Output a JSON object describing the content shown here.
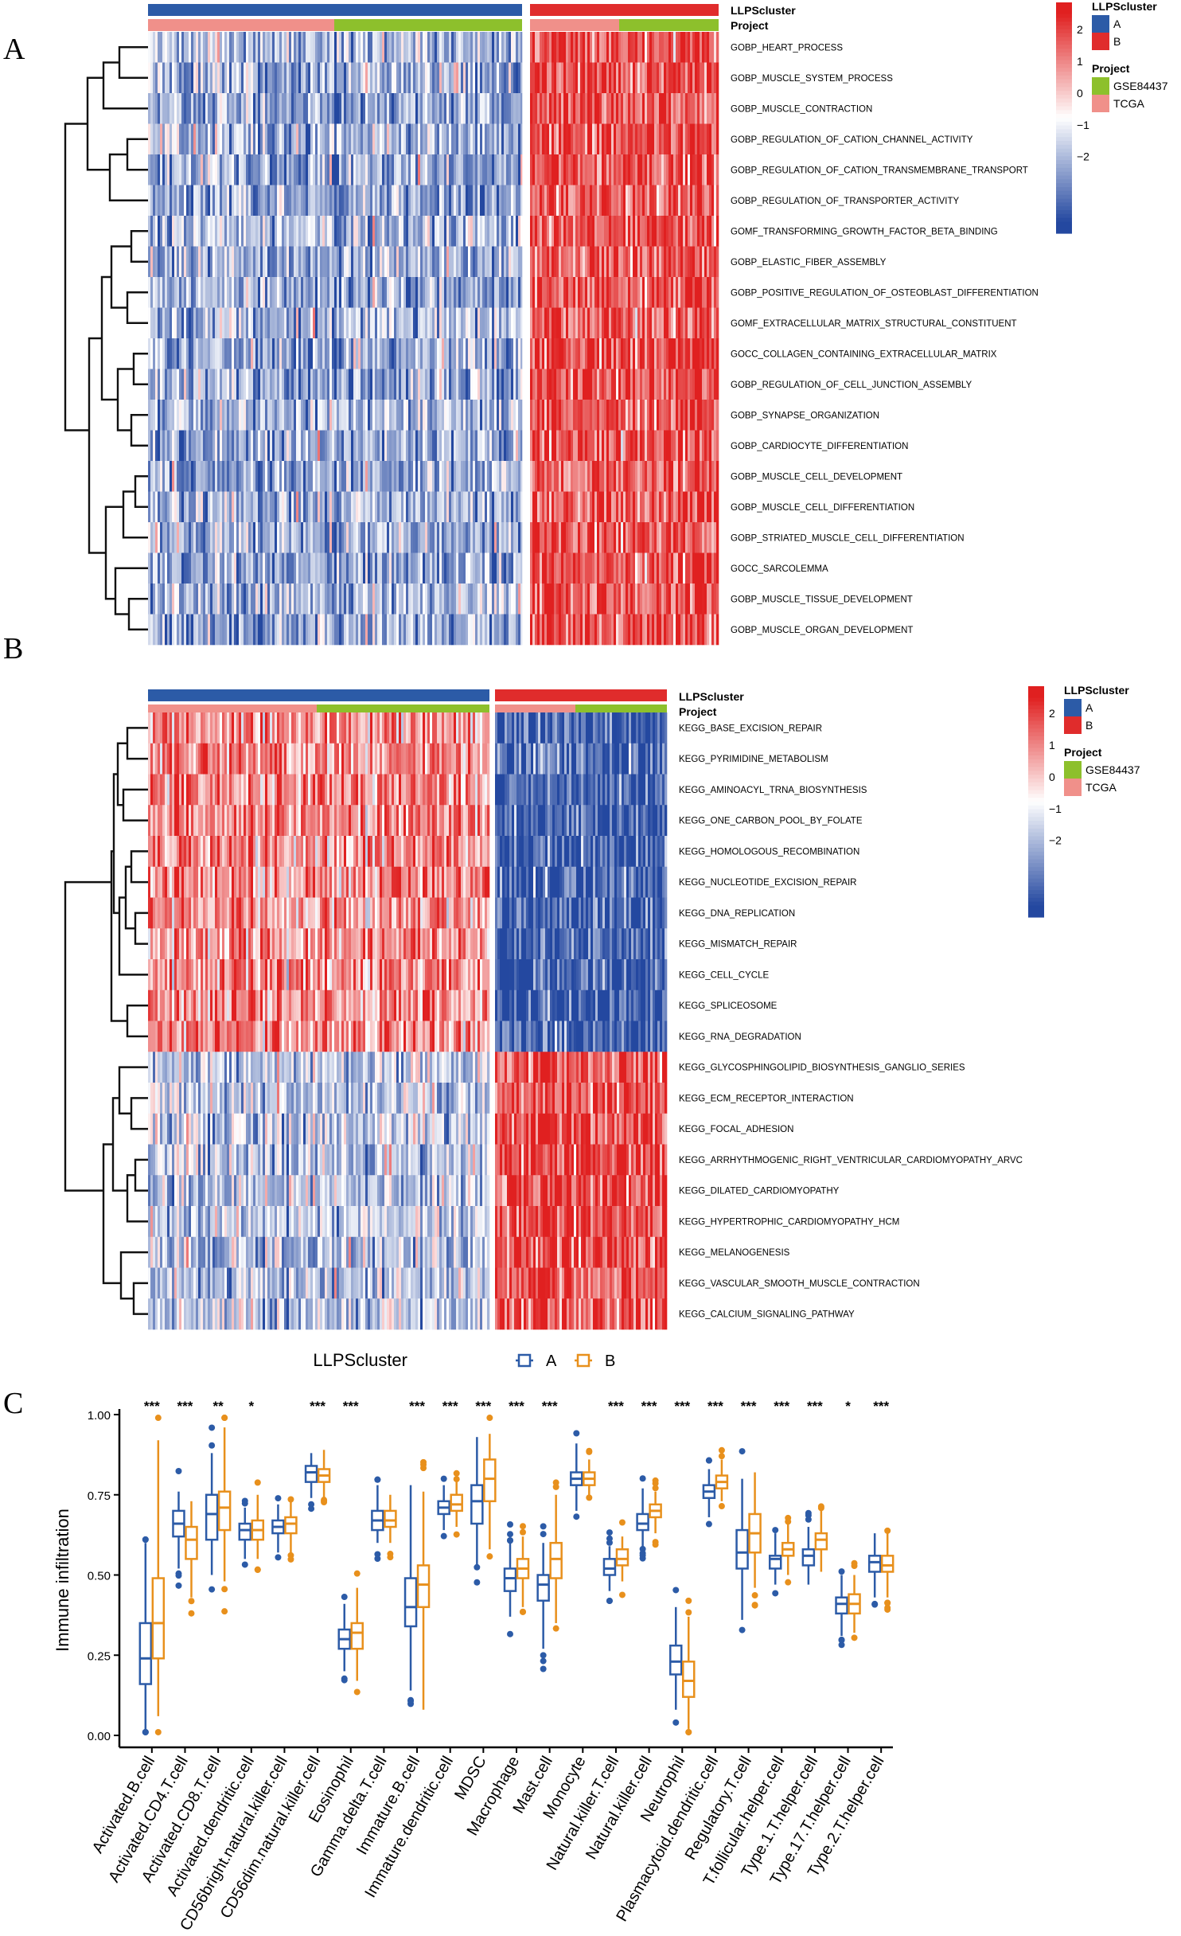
{
  "panels": {
    "a": "A",
    "b": "B",
    "c": "C"
  },
  "colors": {
    "cluster_A": "#2c5ba7",
    "cluster_B": "#e02c2c",
    "GSE84437": "#8dc02c",
    "TCGA": "#f0908a",
    "high": "#e02020",
    "mid": "#ffffff",
    "low": "#2448a0",
    "box_A": "#2c5ba7",
    "box_B": "#e8901c"
  },
  "heatmap_a": {
    "annotation_labels": [
      "LLPScluster",
      "Project"
    ],
    "legend": {
      "scale_ticks": [
        "2",
        "1",
        "0",
        "−1",
        "−2"
      ],
      "cluster_title": "LLPScluster",
      "cluster_items": [
        "A",
        "B"
      ],
      "project_title": "Project",
      "project_items": [
        "GSE84437",
        "TCGA"
      ]
    },
    "rows": [
      "GOBP_HEART_PROCESS",
      "GOBP_MUSCLE_SYSTEM_PROCESS",
      "GOBP_MUSCLE_CONTRACTION",
      "GOBP_REGULATION_OF_CATION_CHANNEL_ACTIVITY",
      "GOBP_REGULATION_OF_CATION_TRANSMEMBRANE_TRANSPORT",
      "GOBP_REGULATION_OF_TRANSPORTER_ACTIVITY",
      "GOMF_TRANSFORMING_GROWTH_FACTOR_BETA_BINDING",
      "GOBP_ELASTIC_FIBER_ASSEMBLY",
      "GOBP_POSITIVE_REGULATION_OF_OSTEOBLAST_DIFFERENTIATION",
      "GOMF_EXTRACELLULAR_MATRIX_STRUCTURAL_CONSTITUENT",
      "GOCC_COLLAGEN_CONTAINING_EXTRACELLULAR_MATRIX",
      "GOBP_REGULATION_OF_CELL_JUNCTION_ASSEMBLY",
      "GOBP_SYNAPSE_ORGANIZATION",
      "GOBP_CARDIOCYTE_DIFFERENTIATION",
      "GOBP_MUSCLE_CELL_DEVELOPMENT",
      "GOBP_MUSCLE_CELL_DIFFERENTIATION",
      "GOBP_STRIATED_MUSCLE_CELL_DIFFERENTIATION",
      "GOCC_SARCOLEMMA",
      "GOBP_MUSCLE_TISSUE_DEVELOPMENT",
      "GOBP_MUSCLE_ORGAN_DEVELOPMENT"
    ],
    "pattern": [
      "A_low",
      "B_high"
    ]
  },
  "heatmap_b": {
    "annotation_labels": [
      "LLPScluster",
      "Project"
    ],
    "legend": {
      "scale_ticks": [
        "2",
        "1",
        "0",
        "−1",
        "−2"
      ],
      "cluster_title": "LLPScluster",
      "cluster_items": [
        "A",
        "B"
      ],
      "project_title": "Project",
      "project_items": [
        "GSE84437",
        "TCGA"
      ]
    },
    "rows": [
      "KEGG_BASE_EXCISION_REPAIR",
      "KEGG_PYRIMIDINE_METABOLISM",
      "KEGG_AMINOACYL_TRNA_BIOSYNTHESIS",
      "KEGG_ONE_CARBON_POOL_BY_FOLATE",
      "KEGG_HOMOLOGOUS_RECOMBINATION",
      "KEGG_NUCLEOTIDE_EXCISION_REPAIR",
      "KEGG_DNA_REPLICATION",
      "KEGG_MISMATCH_REPAIR",
      "KEGG_CELL_CYCLE",
      "KEGG_SPLICEOSOME",
      "KEGG_RNA_DEGRADATION",
      "KEGG_GLYCOSPHINGOLIPID_BIOSYNTHESIS_GANGLIO_SERIES",
      "KEGG_ECM_RECEPTOR_INTERACTION",
      "KEGG_FOCAL_ADHESION",
      "KEGG_ARRHYTHMOGENIC_RIGHT_VENTRICULAR_CARDIOMYOPATHY_ARVC",
      "KEGG_DILATED_CARDIOMYOPATHY",
      "KEGG_HYPERTROPHIC_CARDIOMYOPATHY_HCM",
      "KEGG_MELANOGENESIS",
      "KEGG_VASCULAR_SMOOTH_MUSCLE_CONTRACTION",
      "KEGG_CALCIUM_SIGNALING_PATHWAY"
    ],
    "high_in_A_rows": 11
  },
  "chart_data": {
    "type": "box",
    "legend_title": "LLPScluster",
    "legend_items": [
      "A",
      "B"
    ],
    "ylabel": "Immune infiltration",
    "ylim": [
      0,
      1
    ],
    "yticks": [
      "0.00",
      "0.25",
      "0.50",
      "0.75",
      "1.00"
    ],
    "categories": [
      "Activated.B.cell",
      "Activated.CD4.T.cell",
      "Activated.CD8.T.cell",
      "Activated.dendritic.cell",
      "CD56bright.natural.killer.cell",
      "CD56dim.natural.killer.cell",
      "Eosinophil",
      "Gamma.delta.T.cell",
      "Immature.B.cell",
      "Immature.dendritic.cell",
      "MDSC",
      "Macrophage",
      "Mast.cell",
      "Monocyte",
      "Natural.killer.T.cell",
      "Natural.killer.cell",
      "Neutrophil",
      "Plasmacytoid.dendritic.cell",
      "Regulatory.T.cell",
      "T.follicular.helper.cell",
      "Type.1.T.helper.cell",
      "Type.17.T.helper.cell",
      "Type.2.T.helper.cell"
    ],
    "significance": [
      "***",
      "***",
      "**",
      "*",
      "",
      "***",
      "***",
      "",
      "***",
      "***",
      "***",
      "***",
      "***",
      "",
      "***",
      "***",
      "***",
      "***",
      "***",
      "***",
      "***",
      "*",
      "***"
    ],
    "series": [
      {
        "name": "A",
        "boxes": [
          [
            0.01,
            0.16,
            0.24,
            0.35,
            0.6
          ],
          [
            0.52,
            0.62,
            0.66,
            0.7,
            0.76
          ],
          [
            0.5,
            0.61,
            0.69,
            0.75,
            0.88
          ],
          [
            0.55,
            0.61,
            0.64,
            0.66,
            0.71
          ],
          [
            0.57,
            0.63,
            0.65,
            0.67,
            0.72
          ],
          [
            0.74,
            0.79,
            0.82,
            0.84,
            0.88
          ],
          [
            0.2,
            0.27,
            0.3,
            0.33,
            0.41
          ],
          [
            0.6,
            0.64,
            0.67,
            0.7,
            0.78
          ],
          [
            0.14,
            0.34,
            0.4,
            0.49,
            0.78
          ],
          [
            0.64,
            0.69,
            0.71,
            0.73,
            0.78
          ],
          [
            0.53,
            0.66,
            0.73,
            0.78,
            0.93
          ],
          [
            0.37,
            0.45,
            0.49,
            0.52,
            0.6
          ],
          [
            0.27,
            0.42,
            0.47,
            0.5,
            0.6
          ],
          [
            0.7,
            0.78,
            0.8,
            0.82,
            0.91
          ],
          [
            0.45,
            0.5,
            0.52,
            0.55,
            0.59
          ],
          [
            0.59,
            0.64,
            0.66,
            0.69,
            0.77
          ],
          [
            0.08,
            0.19,
            0.23,
            0.28,
            0.4
          ],
          [
            0.68,
            0.74,
            0.76,
            0.78,
            0.83
          ],
          [
            0.36,
            0.52,
            0.57,
            0.64,
            0.8
          ],
          [
            0.47,
            0.52,
            0.55,
            0.56,
            0.63
          ],
          [
            0.47,
            0.53,
            0.56,
            0.58,
            0.65
          ],
          [
            0.31,
            0.38,
            0.41,
            0.43,
            0.5
          ],
          [
            0.43,
            0.51,
            0.54,
            0.56,
            0.63
          ]
        ]
      },
      {
        "name": "B",
        "boxes": [
          [
            0.06,
            0.24,
            0.35,
            0.49,
            0.92
          ],
          [
            0.43,
            0.55,
            0.61,
            0.65,
            0.73
          ],
          [
            0.48,
            0.64,
            0.71,
            0.76,
            0.96
          ],
          [
            0.55,
            0.61,
            0.64,
            0.67,
            0.75
          ],
          [
            0.57,
            0.63,
            0.66,
            0.68,
            0.73
          ],
          [
            0.74,
            0.79,
            0.81,
            0.83,
            0.89
          ],
          [
            0.17,
            0.27,
            0.32,
            0.35,
            0.46
          ],
          [
            0.6,
            0.65,
            0.67,
            0.7,
            0.75
          ],
          [
            0.08,
            0.4,
            0.47,
            0.53,
            0.76
          ],
          [
            0.65,
            0.7,
            0.72,
            0.75,
            0.79
          ],
          [
            0.58,
            0.73,
            0.8,
            0.86,
            0.94
          ],
          [
            0.4,
            0.49,
            0.52,
            0.55,
            0.62
          ],
          [
            0.35,
            0.49,
            0.55,
            0.6,
            0.75
          ],
          [
            0.75,
            0.78,
            0.8,
            0.82,
            0.86
          ],
          [
            0.48,
            0.53,
            0.55,
            0.58,
            0.62
          ],
          [
            0.63,
            0.68,
            0.7,
            0.72,
            0.76
          ],
          [
            0.02,
            0.12,
            0.17,
            0.23,
            0.37
          ],
          [
            0.73,
            0.77,
            0.79,
            0.81,
            0.86
          ],
          [
            0.46,
            0.57,
            0.63,
            0.69,
            0.82
          ],
          [
            0.5,
            0.56,
            0.58,
            0.6,
            0.66
          ],
          [
            0.51,
            0.58,
            0.61,
            0.63,
            0.7
          ],
          [
            0.32,
            0.38,
            0.41,
            0.44,
            0.5
          ],
          [
            0.43,
            0.51,
            0.53,
            0.56,
            0.63
          ]
        ]
      }
    ]
  }
}
